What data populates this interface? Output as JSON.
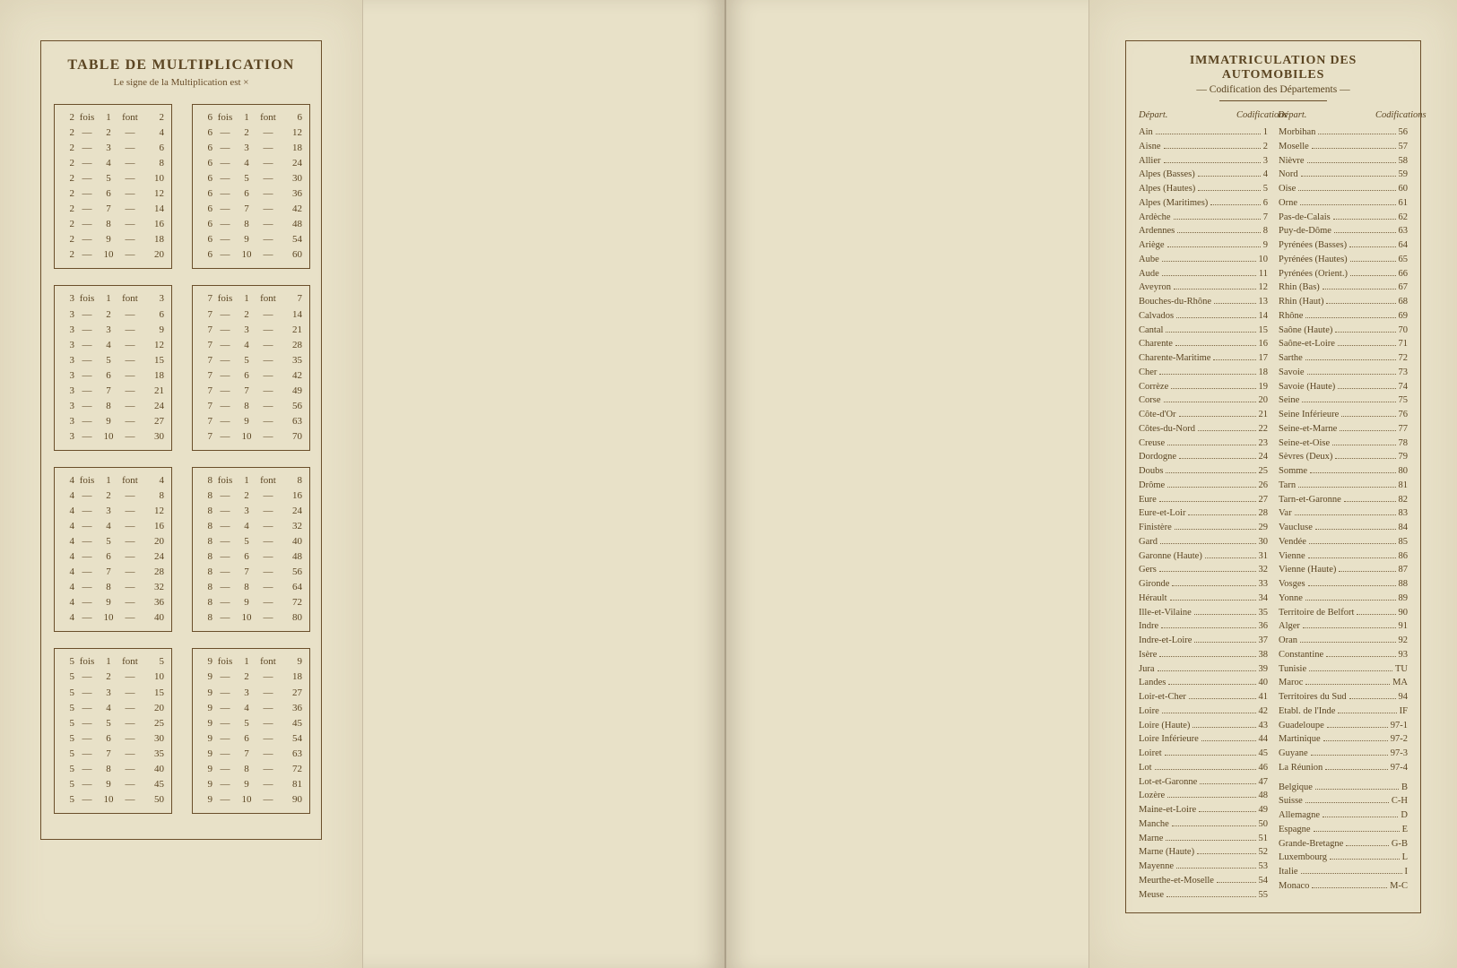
{
  "colors": {
    "page_bg": "#e8e1c8",
    "border": "#6a4e2a",
    "text": "#5b4522",
    "outer_bg": "#343334"
  },
  "mult": {
    "title": "TABLE DE MULTIPLICATION",
    "sub_prefix": "Le signe de la Multiplication est ",
    "sub_sign": "×",
    "fois": "fois",
    "font_word": "font",
    "dash": "—",
    "tables": [
      2,
      3,
      4,
      5,
      6,
      7,
      8,
      9
    ],
    "mults": [
      1,
      2,
      3,
      4,
      5,
      6,
      7,
      8,
      9,
      10
    ]
  },
  "dep": {
    "title": "IMMATRICULATION DES AUTOMOBILES",
    "subtitle": "— Codification des Départements —",
    "col_dep": "Départ.",
    "col_code": "Codifications",
    "left": [
      {
        "n": "Ain",
        "c": "1"
      },
      {
        "n": "Aisne",
        "c": "2"
      },
      {
        "n": "Allier",
        "c": "3"
      },
      {
        "n": "Alpes (Basses)",
        "c": "4"
      },
      {
        "n": "Alpes (Hautes)",
        "c": "5"
      },
      {
        "n": "Alpes (Maritimes)",
        "c": "6"
      },
      {
        "n": "Ardèche",
        "c": "7"
      },
      {
        "n": "Ardennes",
        "c": "8"
      },
      {
        "n": "Ariège",
        "c": "9"
      },
      {
        "n": "Aube",
        "c": "10"
      },
      {
        "n": "Aude",
        "c": "11"
      },
      {
        "n": "Aveyron",
        "c": "12"
      },
      {
        "n": "Bouches-du-Rhône",
        "c": "13"
      },
      {
        "n": "Calvados",
        "c": "14"
      },
      {
        "n": "Cantal",
        "c": "15"
      },
      {
        "n": "Charente",
        "c": "16"
      },
      {
        "n": "Charente-Maritime",
        "c": "17"
      },
      {
        "n": "Cher",
        "c": "18"
      },
      {
        "n": "Corrèze",
        "c": "19"
      },
      {
        "n": "Corse",
        "c": "20"
      },
      {
        "n": "Côte-d'Or",
        "c": "21"
      },
      {
        "n": "Côtes-du-Nord",
        "c": "22"
      },
      {
        "n": "Creuse",
        "c": "23"
      },
      {
        "n": "Dordogne",
        "c": "24"
      },
      {
        "n": "Doubs",
        "c": "25"
      },
      {
        "n": "Drôme",
        "c": "26"
      },
      {
        "n": "Eure",
        "c": "27"
      },
      {
        "n": "Eure-et-Loir",
        "c": "28"
      },
      {
        "n": "Finistère",
        "c": "29"
      },
      {
        "n": "Gard",
        "c": "30"
      },
      {
        "n": "Garonne (Haute)",
        "c": "31"
      },
      {
        "n": "Gers",
        "c": "32"
      },
      {
        "n": "Gironde",
        "c": "33"
      },
      {
        "n": "Hérault",
        "c": "34"
      },
      {
        "n": "Ille-et-Vilaine",
        "c": "35"
      },
      {
        "n": "Indre",
        "c": "36"
      },
      {
        "n": "Indre-et-Loire",
        "c": "37"
      },
      {
        "n": "Isère",
        "c": "38"
      },
      {
        "n": "Jura",
        "c": "39"
      },
      {
        "n": "Landes",
        "c": "40"
      },
      {
        "n": "Loir-et-Cher",
        "c": "41"
      },
      {
        "n": "Loire",
        "c": "42"
      },
      {
        "n": "Loire (Haute)",
        "c": "43"
      },
      {
        "n": "Loire Inférieure",
        "c": "44"
      },
      {
        "n": "Loiret",
        "c": "45"
      },
      {
        "n": "Lot",
        "c": "46"
      },
      {
        "n": "Lot-et-Garonne",
        "c": "47"
      },
      {
        "n": "Lozère",
        "c": "48"
      },
      {
        "n": "Maine-et-Loire",
        "c": "49"
      },
      {
        "n": "Manche",
        "c": "50"
      },
      {
        "n": "Marne",
        "c": "51"
      },
      {
        "n": "Marne (Haute)",
        "c": "52"
      },
      {
        "n": "Mayenne",
        "c": "53"
      },
      {
        "n": "Meurthe-et-Moselle",
        "c": "54"
      },
      {
        "n": "Meuse",
        "c": "55"
      }
    ],
    "right": [
      {
        "n": "Morbihan",
        "c": "56"
      },
      {
        "n": "Moselle",
        "c": "57"
      },
      {
        "n": "Nièvre",
        "c": "58"
      },
      {
        "n": "Nord",
        "c": "59"
      },
      {
        "n": "Oise",
        "c": "60"
      },
      {
        "n": "Orne",
        "c": "61"
      },
      {
        "n": "Pas-de-Calais",
        "c": "62"
      },
      {
        "n": "Puy-de-Dôme",
        "c": "63"
      },
      {
        "n": "Pyrénées (Basses)",
        "c": "64"
      },
      {
        "n": "Pyrénées (Hautes)",
        "c": "65"
      },
      {
        "n": "Pyrénées (Orient.)",
        "c": "66"
      },
      {
        "n": "Rhin (Bas)",
        "c": "67"
      },
      {
        "n": "Rhin (Haut)",
        "c": "68"
      },
      {
        "n": "Rhône",
        "c": "69"
      },
      {
        "n": "Saône (Haute)",
        "c": "70"
      },
      {
        "n": "Saône-et-Loire",
        "c": "71"
      },
      {
        "n": "Sarthe",
        "c": "72"
      },
      {
        "n": "Savoie",
        "c": "73"
      },
      {
        "n": "Savoie (Haute)",
        "c": "74"
      },
      {
        "n": "Seine",
        "c": "75"
      },
      {
        "n": "Seine Inférieure",
        "c": "76"
      },
      {
        "n": "Seine-et-Marne",
        "c": "77"
      },
      {
        "n": "Seine-et-Oise",
        "c": "78"
      },
      {
        "n": "Sèvres (Deux)",
        "c": "79"
      },
      {
        "n": "Somme",
        "c": "80"
      },
      {
        "n": "Tarn",
        "c": "81"
      },
      {
        "n": "Tarn-et-Garonne",
        "c": "82"
      },
      {
        "n": "Var",
        "c": "83"
      },
      {
        "n": "Vaucluse",
        "c": "84"
      },
      {
        "n": "Vendée",
        "c": "85"
      },
      {
        "n": "Vienne",
        "c": "86"
      },
      {
        "n": "Vienne (Haute)",
        "c": "87"
      },
      {
        "n": "Vosges",
        "c": "88"
      },
      {
        "n": "Yonne",
        "c": "89"
      },
      {
        "n": "Territoire de Belfort",
        "c": "90"
      },
      {
        "n": "Alger",
        "c": "91"
      },
      {
        "n": "Oran",
        "c": "92"
      },
      {
        "n": "Constantine",
        "c": "93"
      },
      {
        "n": "Tunisie",
        "c": "TU"
      },
      {
        "n": "Maroc",
        "c": "MA"
      },
      {
        "n": "Territoires du Sud",
        "c": "94"
      },
      {
        "n": "Etabl. de l'Inde",
        "c": "IF"
      },
      {
        "n": "Guadeloupe",
        "c": "97-1"
      },
      {
        "n": "Martinique",
        "c": "97-2"
      },
      {
        "n": "Guyane",
        "c": "97-3"
      },
      {
        "n": "La Réunion",
        "c": "97-4"
      },
      {
        "n": "",
        "c": "",
        "spacer": true
      },
      {
        "n": "Belgique",
        "c": "B"
      },
      {
        "n": "Suisse",
        "c": "C-H"
      },
      {
        "n": "Allemagne",
        "c": "D"
      },
      {
        "n": "Espagne",
        "c": "E"
      },
      {
        "n": "Grande-Bretagne",
        "c": "G-B"
      },
      {
        "n": "Luxembourg",
        "c": "L"
      },
      {
        "n": "Italie",
        "c": "I"
      },
      {
        "n": "Monaco",
        "c": "M-C"
      }
    ]
  }
}
